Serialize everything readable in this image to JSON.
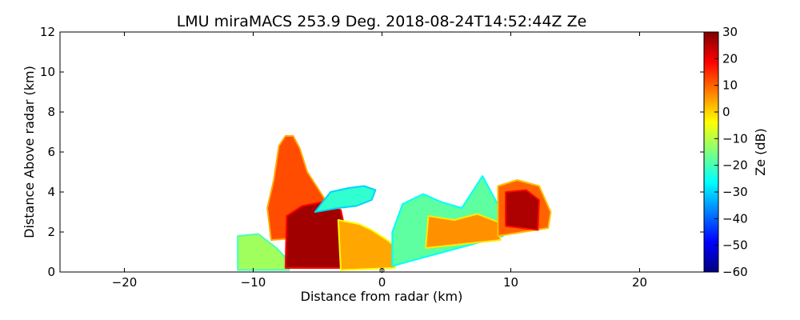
{
  "chart_data": {
    "type": "heatmap",
    "title": "LMU miraMACS 253.9 Deg. 2018-08-24T14:52:44Z  Ze",
    "xlabel": "Distance from radar (km)",
    "ylabel": "Distance Above radar  (km)",
    "xlim": [
      -25,
      25
    ],
    "ylim": [
      0,
      12
    ],
    "xticks": [
      -20,
      -10,
      0,
      10,
      20
    ],
    "xtick_labels": [
      "−20",
      "−10",
      "0",
      "10",
      "20"
    ],
    "yticks": [
      0,
      2,
      4,
      6,
      8,
      10,
      12
    ],
    "ytick_labels": [
      "0",
      "2",
      "4",
      "6",
      "8",
      "10",
      "12"
    ],
    "colorbar": {
      "label": "Ze (dB)",
      "range": [
        -60,
        30
      ],
      "ticks": [
        30,
        20,
        10,
        0,
        -10,
        -20,
        -30,
        -40,
        -50,
        -60
      ],
      "tick_labels": [
        "30",
        "20",
        "10",
        "0",
        "−10",
        "−20",
        "−30",
        "−40",
        "−50",
        "−60"
      ],
      "colormap": [
        "#00007f",
        "#0000ff",
        "#007fff",
        "#00ffff",
        "#7fff7f",
        "#ffff00",
        "#ff7f00",
        "#ff0000",
        "#7f0000"
      ]
    },
    "echo_regions": [
      {
        "name": "left-low-echo",
        "outline_km": [
          [
            -11.2,
            0.1
          ],
          [
            -11.2,
            1.8
          ],
          [
            -9.6,
            1.9
          ],
          [
            -8.2,
            1.2
          ],
          [
            -7.6,
            0.8
          ],
          [
            -7.2,
            0.1
          ]
        ],
        "ze_db": -12
      },
      {
        "name": "left-tower",
        "outline_km": [
          [
            -8.6,
            1.6
          ],
          [
            -8.9,
            3.2
          ],
          [
            -8.4,
            4.6
          ],
          [
            -8.0,
            6.3
          ],
          [
            -7.5,
            6.8
          ],
          [
            -6.9,
            6.8
          ],
          [
            -6.4,
            6.2
          ],
          [
            -5.8,
            5.0
          ],
          [
            -5.0,
            4.2
          ],
          [
            -4.2,
            3.4
          ],
          [
            -4.5,
            1.8
          ]
        ],
        "ze_db": 12
      },
      {
        "name": "left-core",
        "outline_km": [
          [
            -7.5,
            0.2
          ],
          [
            -7.4,
            2.8
          ],
          [
            -6.2,
            3.3
          ],
          [
            -4.6,
            3.5
          ],
          [
            -3.2,
            3.1
          ],
          [
            -2.7,
            1.6
          ],
          [
            -2.9,
            0.2
          ]
        ],
        "ze_db": 27
      },
      {
        "name": "mid-anvil",
        "outline_km": [
          [
            -5.2,
            3.0
          ],
          [
            -4.0,
            4.0
          ],
          [
            -2.6,
            4.2
          ],
          [
            -1.4,
            4.3
          ],
          [
            -0.5,
            4.1
          ],
          [
            -0.8,
            3.6
          ],
          [
            -2.0,
            3.3
          ],
          [
            -3.4,
            3.2
          ]
        ],
        "ze_db": -22
      },
      {
        "name": "center-low-echo",
        "outline_km": [
          [
            -3.2,
            0.1
          ],
          [
            -3.4,
            2.6
          ],
          [
            -1.8,
            2.4
          ],
          [
            -0.8,
            2.1
          ],
          [
            0.4,
            1.6
          ],
          [
            1.2,
            1.2
          ],
          [
            1.0,
            0.2
          ]
        ],
        "ze_db": 4
      },
      {
        "name": "right-shelf",
        "outline_km": [
          [
            0.8,
            0.3
          ],
          [
            0.8,
            2.0
          ],
          [
            1.6,
            3.4
          ],
          [
            3.2,
            3.9
          ],
          [
            4.6,
            3.5
          ],
          [
            6.2,
            3.2
          ],
          [
            7.8,
            4.8
          ],
          [
            8.8,
            3.6
          ],
          [
            9.6,
            2.6
          ],
          [
            9.4,
            1.8
          ]
        ],
        "ze_db": -18
      },
      {
        "name": "right-mid-echo",
        "outline_km": [
          [
            3.4,
            1.2
          ],
          [
            3.6,
            2.8
          ],
          [
            5.6,
            2.6
          ],
          [
            7.4,
            2.9
          ],
          [
            9.0,
            2.5
          ],
          [
            9.2,
            1.6
          ]
        ],
        "ze_db": 6
      },
      {
        "name": "right-tower",
        "outline_km": [
          [
            9.0,
            1.8
          ],
          [
            9.0,
            4.3
          ],
          [
            10.5,
            4.6
          ],
          [
            12.2,
            4.3
          ],
          [
            13.1,
            3.0
          ],
          [
            12.9,
            2.2
          ]
        ],
        "ze_db": 10
      },
      {
        "name": "right-core",
        "outline_km": [
          [
            9.6,
            2.3
          ],
          [
            9.6,
            4.0
          ],
          [
            11.2,
            4.1
          ],
          [
            12.2,
            3.6
          ],
          [
            12.1,
            2.1
          ]
        ],
        "ze_db": 26
      }
    ],
    "radar_marker": {
      "x": 0,
      "y": 0
    }
  }
}
